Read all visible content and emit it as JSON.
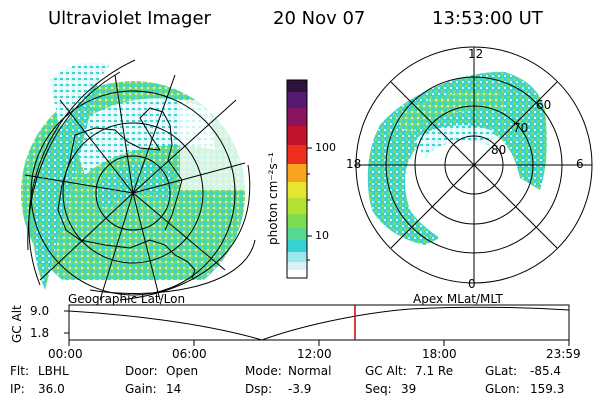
{
  "header": {
    "instrument": "Ultraviolet Imager",
    "date": "20 Nov 07",
    "time": "13:53:00 UT"
  },
  "colorbar": {
    "unit_label": "photon cm⁻²s⁻¹",
    "ticks": [
      "100",
      "10"
    ]
  },
  "polar_plot": {
    "mlt_labels": {
      "top": "12",
      "left": "18",
      "right": "6",
      "bottom": "0"
    },
    "lat_labels": [
      "60",
      "70",
      "80"
    ]
  },
  "panels": {
    "left_title": "Geographic Lat/Lon",
    "right_title": "Apex MLat/MLT"
  },
  "timeline": {
    "axis_label": "GC Alt",
    "y_ticks": [
      "9.0",
      "1.8"
    ],
    "x_ticks": [
      "00:00",
      "06:00",
      "12:00",
      "18:00",
      "23:59"
    ],
    "marker_time": "13:53"
  },
  "info": {
    "filter_label": "Flt:",
    "filter_value": "LBHL",
    "ip_label": "IP:",
    "ip_value": "36.0",
    "door_label": "Door:",
    "door_value": "Open",
    "gain_label": "Gain:",
    "gain_value": "14",
    "mode_label": "Mode:",
    "mode_value": "Normal",
    "dsp_label": "Dsp:",
    "dsp_value": "-3.9",
    "gcalt_label": "GC Alt:",
    "gcalt_value": "7.1 Re",
    "seq_label": "Seq:",
    "seq_value": "39",
    "glat_label": "GLat:",
    "glat_value": "-85.4",
    "glon_label": "GLon:",
    "glon_value": "159.3"
  },
  "colors": {
    "aurora_cyan": "#33d3d0",
    "aurora_green": "#77dd55",
    "aurora_light": "#d9f3f7",
    "marker": "#cc0000"
  }
}
